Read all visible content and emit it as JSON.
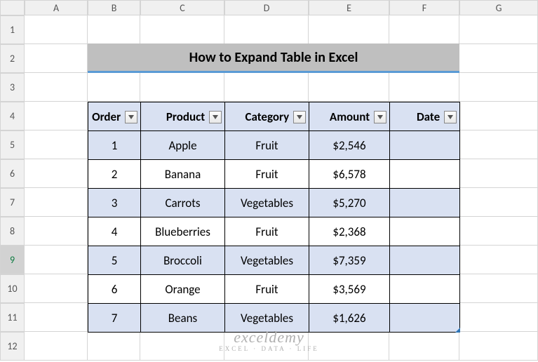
{
  "columns": [
    "A",
    "B",
    "C",
    "D",
    "E",
    "F",
    "G"
  ],
  "row_count": 12,
  "selected_row": 9,
  "title": "How to Expand Table in Excel",
  "table": {
    "headers": [
      "Order",
      "Product",
      "Category",
      "Amount",
      "Date"
    ],
    "rows": [
      {
        "order": "1",
        "product": "Apple",
        "category": "Fruit",
        "amount": "$2,546",
        "date": ""
      },
      {
        "order": "2",
        "product": "Banana",
        "category": "Fruit",
        "amount": "$6,578",
        "date": ""
      },
      {
        "order": "3",
        "product": "Carrots",
        "category": "Vegetables",
        "amount": "$5,270",
        "date": ""
      },
      {
        "order": "4",
        "product": "Blueberries",
        "category": "Fruit",
        "amount": "$2,368",
        "date": ""
      },
      {
        "order": "5",
        "product": "Broccoli",
        "category": "Vegetables",
        "amount": "$7,359",
        "date": ""
      },
      {
        "order": "6",
        "product": "Orange",
        "category": "Fruit",
        "amount": "$3,569",
        "date": ""
      },
      {
        "order": "7",
        "product": "Beans",
        "category": "Vegetables",
        "amount": "$1,626",
        "date": ""
      }
    ],
    "band_color": "#d9e1f2",
    "plain_color": "#ffffff",
    "header_bg": "#d9e1f2",
    "border_color": "#000000"
  },
  "watermark": {
    "main": "exceldemy",
    "sub": "EXCEL · DATA · LIFE"
  },
  "title_style": {
    "bg": "#bfbfbf",
    "underline": "#5b9bd5"
  }
}
